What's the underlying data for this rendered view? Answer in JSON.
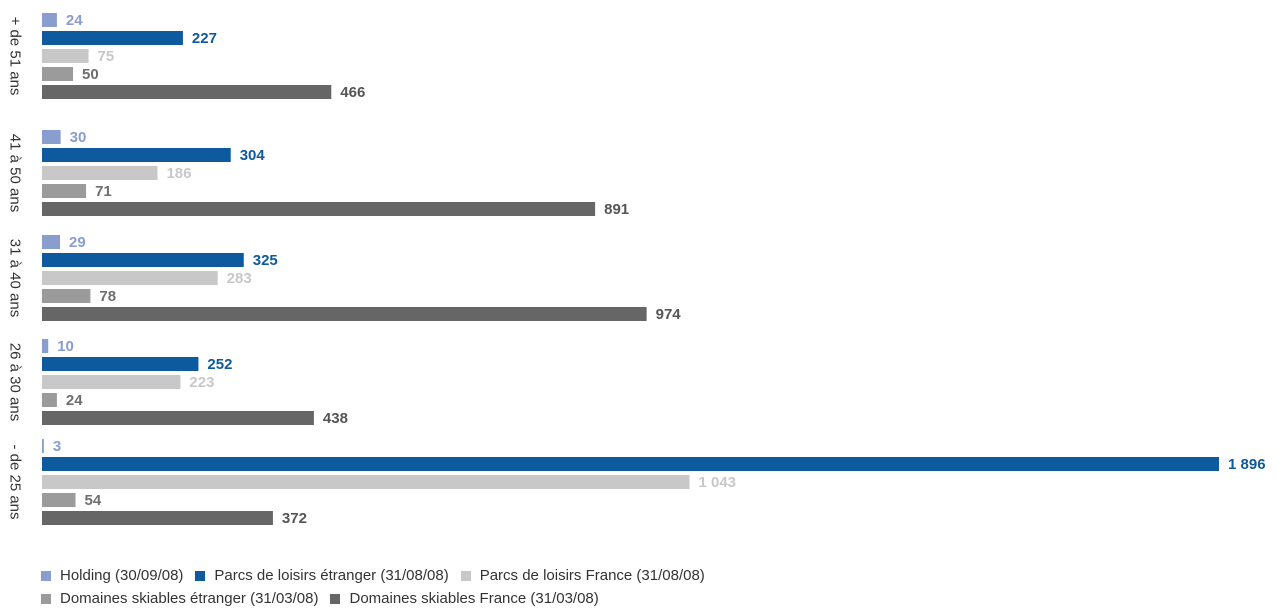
{
  "chart_data": {
    "type": "bar",
    "orientation": "horizontal",
    "categories": [
      "+ de 51 ans",
      "41 à 50 ans",
      "31 à 40 ans",
      "26 à 30 ans",
      "- de 25 ans"
    ],
    "series": [
      {
        "name": "Holding (30/09/08)",
        "color": "#8a9dcf",
        "values": [
          24,
          30,
          29,
          10,
          3
        ]
      },
      {
        "name": "Parcs de loisirs étranger (31/08/08)",
        "color": "#0d5a9e",
        "values": [
          227,
          304,
          325,
          252,
          1896
        ]
      },
      {
        "name": "Parcs de loisirs France (31/08/08)",
        "color": "#c8c8c8",
        "values": [
          75,
          186,
          283,
          223,
          1043
        ]
      },
      {
        "name": "Domaines skiables étranger (31/03/08)",
        "color": "#9b9b9b",
        "values": [
          50,
          71,
          78,
          24,
          54
        ]
      },
      {
        "name": "Domaines skiables France (31/03/08)",
        "color": "#666666",
        "values": [
          466,
          891,
          974,
          438,
          372
        ]
      }
    ],
    "value_labels": {
      "Holding (30/09/08)": [
        "24",
        "30",
        "29",
        "10",
        "3"
      ],
      "Parcs de loisirs étranger (31/08/08)": [
        "227",
        "304",
        "325",
        "252",
        "1 896"
      ],
      "Parcs de loisirs France (31/08/08)": [
        "75",
        "186",
        "283",
        "223",
        "1 043"
      ],
      "Domaines skiables étranger (31/03/08)": [
        "50",
        "71",
        "78",
        "24",
        "54"
      ],
      "Domaines skiables France (31/03/08)": [
        "466",
        "891",
        "974",
        "438",
        "372"
      ]
    },
    "legend_position": "bottom",
    "grid": false
  }
}
